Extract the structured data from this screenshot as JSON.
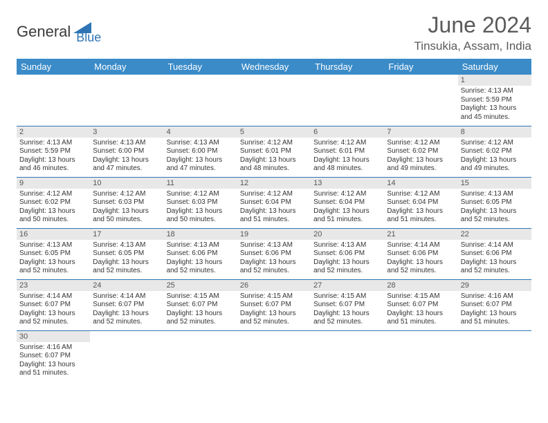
{
  "brand": {
    "part1": "General",
    "part2": "Blue"
  },
  "title": "June 2024",
  "location": "Tinsukia, Assam, India",
  "colors": {
    "header_bg": "#3b8bc8",
    "header_fg": "#ffffff",
    "daynum_bg": "#e8e8e8",
    "cell_border": "#2e75b6",
    "title_color": "#5a5a5a",
    "brand_blue": "#2e75b6"
  },
  "typography": {
    "title_fontsize": 32,
    "location_fontsize": 17,
    "weekday_fontsize": 13,
    "daynum_fontsize": 11,
    "content_fontsize": 10
  },
  "weekdays": [
    "Sunday",
    "Monday",
    "Tuesday",
    "Wednesday",
    "Thursday",
    "Friday",
    "Saturday"
  ],
  "grid": {
    "columns": 7,
    "rows": 6,
    "first_day_column": 6
  },
  "days": [
    {
      "n": 1,
      "sunrise": "4:13 AM",
      "sunset": "5:59 PM",
      "daylight": "13 hours and 45 minutes."
    },
    {
      "n": 2,
      "sunrise": "4:13 AM",
      "sunset": "5:59 PM",
      "daylight": "13 hours and 46 minutes."
    },
    {
      "n": 3,
      "sunrise": "4:13 AM",
      "sunset": "6:00 PM",
      "daylight": "13 hours and 47 minutes."
    },
    {
      "n": 4,
      "sunrise": "4:13 AM",
      "sunset": "6:00 PM",
      "daylight": "13 hours and 47 minutes."
    },
    {
      "n": 5,
      "sunrise": "4:12 AM",
      "sunset": "6:01 PM",
      "daylight": "13 hours and 48 minutes."
    },
    {
      "n": 6,
      "sunrise": "4:12 AM",
      "sunset": "6:01 PM",
      "daylight": "13 hours and 48 minutes."
    },
    {
      "n": 7,
      "sunrise": "4:12 AM",
      "sunset": "6:02 PM",
      "daylight": "13 hours and 49 minutes."
    },
    {
      "n": 8,
      "sunrise": "4:12 AM",
      "sunset": "6:02 PM",
      "daylight": "13 hours and 49 minutes."
    },
    {
      "n": 9,
      "sunrise": "4:12 AM",
      "sunset": "6:02 PM",
      "daylight": "13 hours and 50 minutes."
    },
    {
      "n": 10,
      "sunrise": "4:12 AM",
      "sunset": "6:03 PM",
      "daylight": "13 hours and 50 minutes."
    },
    {
      "n": 11,
      "sunrise": "4:12 AM",
      "sunset": "6:03 PM",
      "daylight": "13 hours and 50 minutes."
    },
    {
      "n": 12,
      "sunrise": "4:12 AM",
      "sunset": "6:04 PM",
      "daylight": "13 hours and 51 minutes."
    },
    {
      "n": 13,
      "sunrise": "4:12 AM",
      "sunset": "6:04 PM",
      "daylight": "13 hours and 51 minutes."
    },
    {
      "n": 14,
      "sunrise": "4:12 AM",
      "sunset": "6:04 PM",
      "daylight": "13 hours and 51 minutes."
    },
    {
      "n": 15,
      "sunrise": "4:13 AM",
      "sunset": "6:05 PM",
      "daylight": "13 hours and 52 minutes."
    },
    {
      "n": 16,
      "sunrise": "4:13 AM",
      "sunset": "6:05 PM",
      "daylight": "13 hours and 52 minutes."
    },
    {
      "n": 17,
      "sunrise": "4:13 AM",
      "sunset": "6:05 PM",
      "daylight": "13 hours and 52 minutes."
    },
    {
      "n": 18,
      "sunrise": "4:13 AM",
      "sunset": "6:06 PM",
      "daylight": "13 hours and 52 minutes."
    },
    {
      "n": 19,
      "sunrise": "4:13 AM",
      "sunset": "6:06 PM",
      "daylight": "13 hours and 52 minutes."
    },
    {
      "n": 20,
      "sunrise": "4:13 AM",
      "sunset": "6:06 PM",
      "daylight": "13 hours and 52 minutes."
    },
    {
      "n": 21,
      "sunrise": "4:14 AM",
      "sunset": "6:06 PM",
      "daylight": "13 hours and 52 minutes."
    },
    {
      "n": 22,
      "sunrise": "4:14 AM",
      "sunset": "6:06 PM",
      "daylight": "13 hours and 52 minutes."
    },
    {
      "n": 23,
      "sunrise": "4:14 AM",
      "sunset": "6:07 PM",
      "daylight": "13 hours and 52 minutes."
    },
    {
      "n": 24,
      "sunrise": "4:14 AM",
      "sunset": "6:07 PM",
      "daylight": "13 hours and 52 minutes."
    },
    {
      "n": 25,
      "sunrise": "4:15 AM",
      "sunset": "6:07 PM",
      "daylight": "13 hours and 52 minutes."
    },
    {
      "n": 26,
      "sunrise": "4:15 AM",
      "sunset": "6:07 PM",
      "daylight": "13 hours and 52 minutes."
    },
    {
      "n": 27,
      "sunrise": "4:15 AM",
      "sunset": "6:07 PM",
      "daylight": "13 hours and 52 minutes."
    },
    {
      "n": 28,
      "sunrise": "4:15 AM",
      "sunset": "6:07 PM",
      "daylight": "13 hours and 51 minutes."
    },
    {
      "n": 29,
      "sunrise": "4:16 AM",
      "sunset": "6:07 PM",
      "daylight": "13 hours and 51 minutes."
    },
    {
      "n": 30,
      "sunrise": "4:16 AM",
      "sunset": "6:07 PM",
      "daylight": "13 hours and 51 minutes."
    }
  ],
  "labels": {
    "sunrise": "Sunrise:",
    "sunset": "Sunset:",
    "daylight": "Daylight:"
  }
}
